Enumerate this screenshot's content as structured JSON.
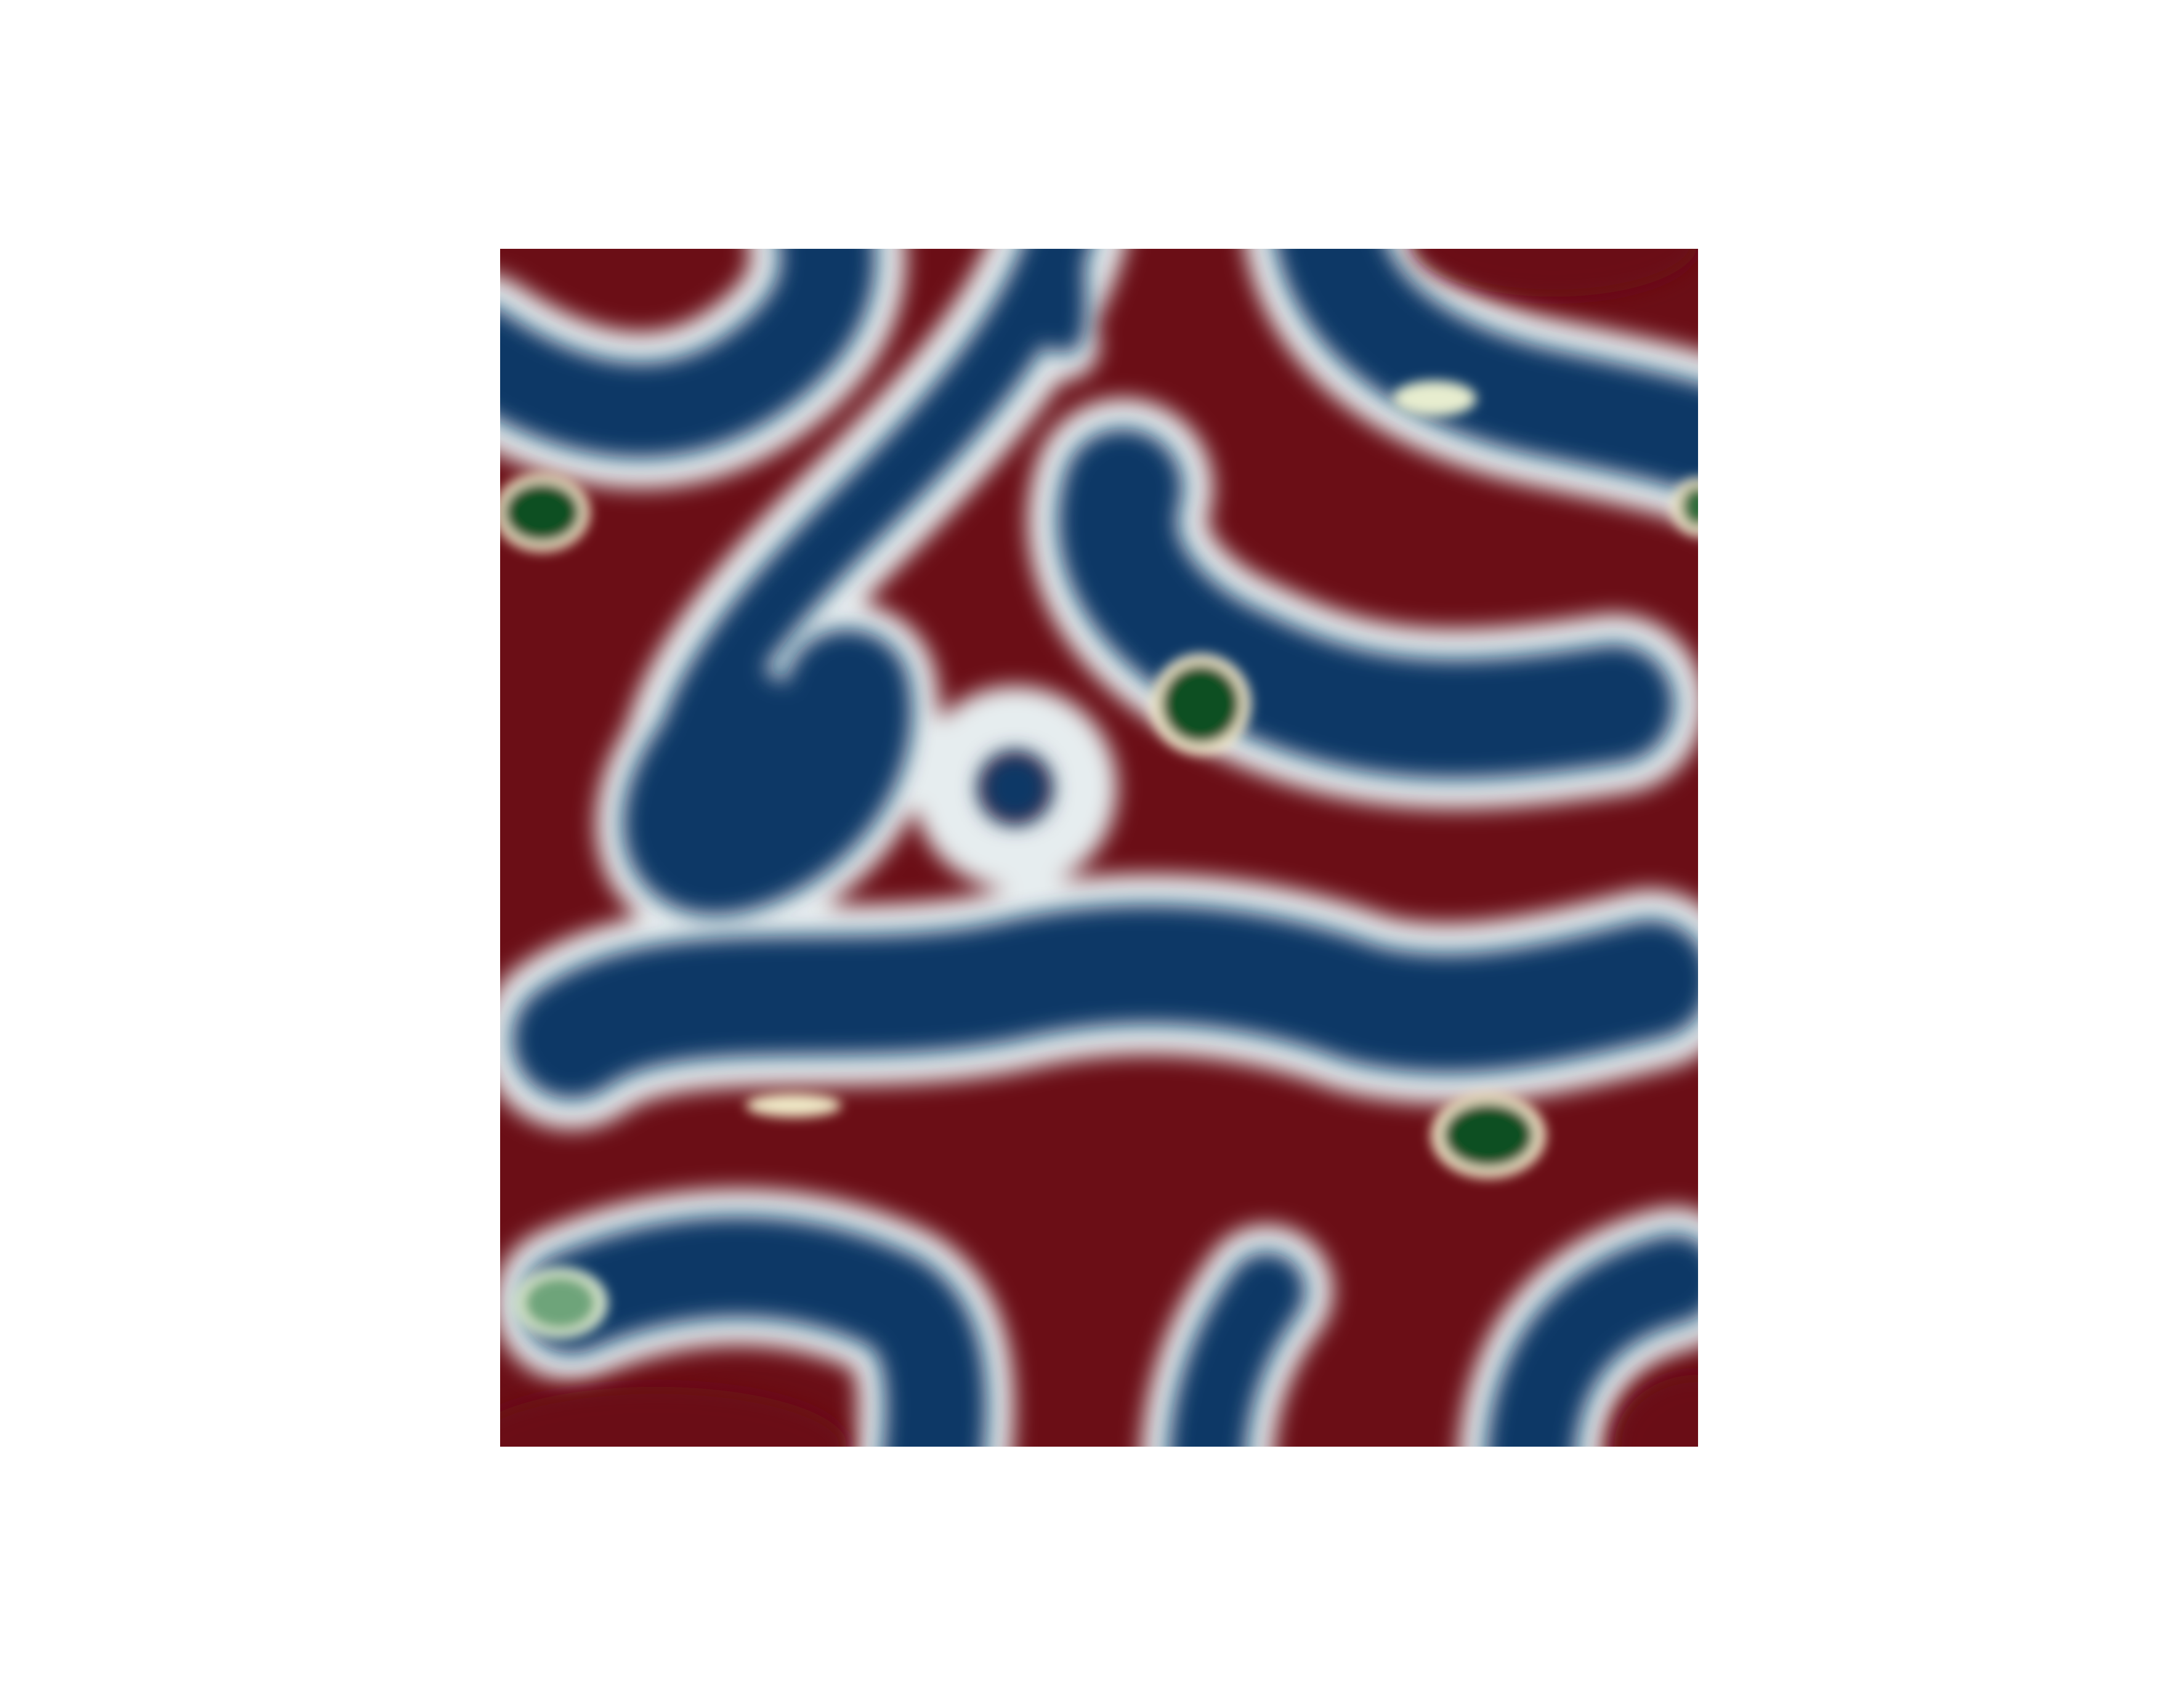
{
  "figure": {
    "kind": "scalar-field-plot",
    "description_colors": {
      "high_phase": "#6b0e16",
      "mid_phase": "#e8eef0",
      "low_phase": "#0c3866",
      "defect": "#0b4f24",
      "background": "#ffffff"
    },
    "icons": [
      "field-plot-image"
    ]
  }
}
